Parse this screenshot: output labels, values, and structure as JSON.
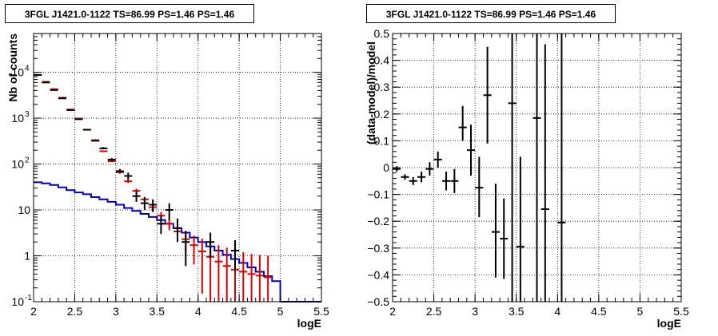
{
  "chart_data": [
    {
      "type": "scatter",
      "title": "3FGL J1421.0-1122 TS=86.99 PS=1.46 PS=1.46",
      "xlabel": "logE",
      "ylabel": "Nb of counts",
      "xlim": [
        2,
        5.5
      ],
      "ylim": [
        0.1,
        70000
      ],
      "yscale": "log",
      "grid": true,
      "x_ticks": [
        "2",
        "2.5",
        "3",
        "3.5",
        "4",
        "4.5",
        "5",
        "5.5"
      ],
      "y_ticks": [
        {
          "value": 0.1,
          "label": "10",
          "exp": "-1"
        },
        {
          "value": 1,
          "label": "1",
          "exp": ""
        },
        {
          "value": 10,
          "label": "10",
          "exp": ""
        },
        {
          "value": 100,
          "label": "10",
          "exp": "2"
        },
        {
          "value": 1000,
          "label": "10",
          "exp": "3"
        },
        {
          "value": 10000,
          "label": "10",
          "exp": "4"
        }
      ],
      "series": [
        {
          "kind": "points",
          "color": "#000000",
          "x": [
            2.05,
            2.15,
            2.25,
            2.35,
            2.45,
            2.55,
            2.65,
            2.75,
            2.85,
            2.95,
            3.05,
            3.15,
            3.25,
            3.35,
            3.45,
            3.55,
            3.65,
            3.75,
            3.85,
            4.15,
            4.45
          ],
          "y": [
            8700,
            6000,
            4100,
            2700,
            1500,
            950,
            560,
            330,
            220,
            125,
            70,
            55,
            20,
            14,
            13,
            5,
            10,
            4,
            2,
            2,
            1.3
          ],
          "ylo": [
            8600,
            5900,
            4000,
            2650,
            1470,
            920,
            540,
            320,
            210,
            115,
            63,
            45,
            15,
            10,
            9,
            3,
            6,
            2,
            0.6,
            0.9,
            0.5
          ],
          "yhi": [
            8800,
            6100,
            4200,
            2750,
            1530,
            980,
            580,
            345,
            235,
            135,
            78,
            65,
            26,
            19,
            17,
            7.5,
            14,
            6.5,
            3.5,
            3.2,
            2.2
          ]
        },
        {
          "kind": "points",
          "color": "#dd0000",
          "x": [
            2.05,
            2.15,
            2.25,
            2.35,
            2.45,
            2.55,
            2.65,
            2.75,
            2.85,
            2.95,
            3.05,
            3.15,
            3.25,
            3.35,
            3.45,
            3.55,
            3.65,
            3.75,
            3.85,
            3.95,
            4.05,
            4.15,
            4.25,
            4.35,
            4.45,
            4.55,
            4.65,
            4.75,
            4.85
          ],
          "y": [
            8800,
            6200,
            4300,
            2800,
            1550,
            980,
            560,
            320,
            190,
            115,
            66,
            42,
            26,
            17,
            11.5,
            7.5,
            5,
            3.4,
            2.3,
            1.7,
            1.25,
            0.95,
            0.75,
            0.6,
            0.5,
            0.45,
            0.4,
            0.37,
            0.34
          ],
          "ylo": [
            8700,
            6100,
            4200,
            2750,
            1520,
            960,
            545,
            310,
            183,
            110,
            62,
            39,
            23,
            15,
            9.5,
            6,
            3.6,
            2.2,
            1.2,
            0.65,
            0.15,
            0.1,
            0.1,
            0.1,
            0.1,
            0.1,
            0.1,
            0.1,
            0.1
          ],
          "yhi": [
            8900,
            6300,
            4400,
            2850,
            1580,
            1000,
            575,
            330,
            197,
            120,
            70,
            45,
            29,
            19,
            13.5,
            9,
            6.4,
            4.6,
            3.4,
            2.75,
            2.35,
            2.0,
            1.7,
            1.5,
            1.3,
            1.2,
            1.1,
            1.05,
            1.0
          ]
        },
        {
          "kind": "step",
          "color": "#0000cc",
          "edges": [
            2.0,
            2.1,
            2.2,
            2.3,
            2.4,
            2.5,
            2.6,
            2.7,
            2.8,
            2.9,
            3.0,
            3.1,
            3.2,
            3.3,
            3.4,
            3.5,
            3.6,
            3.7,
            3.8,
            3.9,
            4.0,
            4.1,
            4.2,
            4.3,
            4.4,
            4.5,
            4.6,
            4.7,
            4.8,
            4.9,
            5.0,
            5.1,
            5.2,
            5.3,
            5.4,
            5.5
          ],
          "y": [
            40,
            38,
            35,
            31,
            27,
            24,
            22,
            19,
            17,
            15,
            13,
            11,
            9.5,
            8.2,
            7,
            6,
            5,
            4,
            3.2,
            2.5,
            2,
            1.6,
            1.3,
            1.05,
            0.85,
            0.7,
            0.56,
            0.45,
            0.36,
            0.28,
            0.1,
            0.1,
            0.1,
            0.1,
            0.1
          ]
        }
      ]
    },
    {
      "type": "scatter",
      "title": "3FGL J1421.0-1122 TS=86.99 PS=1.46 PS=1.46",
      "xlabel": "logE",
      "ylabel": "(data-model)/model",
      "xlim": [
        2,
        5.5
      ],
      "ylim": [
        -0.5,
        0.5
      ],
      "grid": true,
      "x_ticks": [
        "2",
        "2.5",
        "3",
        "3.5",
        "4",
        "4.5",
        "5",
        "5.5"
      ],
      "y_ticks": [
        "−0.5",
        "−0.4",
        "−0.3",
        "−0.2",
        "−0.1",
        "0",
        "0.1",
        "0.2",
        "0.3",
        "0.4",
        "0.5"
      ],
      "series": [
        {
          "kind": "points",
          "color": "#000000",
          "x": [
            2.05,
            2.15,
            2.25,
            2.35,
            2.45,
            2.55,
            2.65,
            2.75,
            2.85,
            2.95,
            3.05,
            3.15,
            3.25,
            3.35,
            3.45,
            3.55,
            3.75,
            3.85,
            4.05
          ],
          "y": [
            -0.005,
            -0.035,
            -0.05,
            -0.035,
            -0.005,
            0.03,
            -0.05,
            -0.05,
            0.15,
            0.065,
            -0.075,
            0.27,
            -0.24,
            -0.265,
            0.24,
            -0.295,
            0.185,
            -0.155,
            -0.205
          ],
          "ylo": [
            -0.015,
            -0.045,
            -0.065,
            -0.055,
            -0.03,
            0.0,
            -0.085,
            -0.095,
            0.1,
            -0.03,
            -0.185,
            0.09,
            -0.41,
            -0.415,
            -0.5,
            -0.5,
            -0.5,
            -0.5,
            -0.5
          ],
          "yhi": [
            0.005,
            -0.025,
            -0.035,
            -0.015,
            0.02,
            0.06,
            -0.015,
            -0.005,
            0.23,
            0.16,
            0.04,
            0.45,
            -0.06,
            -0.115,
            0.5,
            0.04,
            0.5,
            0.46,
            0.5
          ]
        }
      ]
    }
  ]
}
